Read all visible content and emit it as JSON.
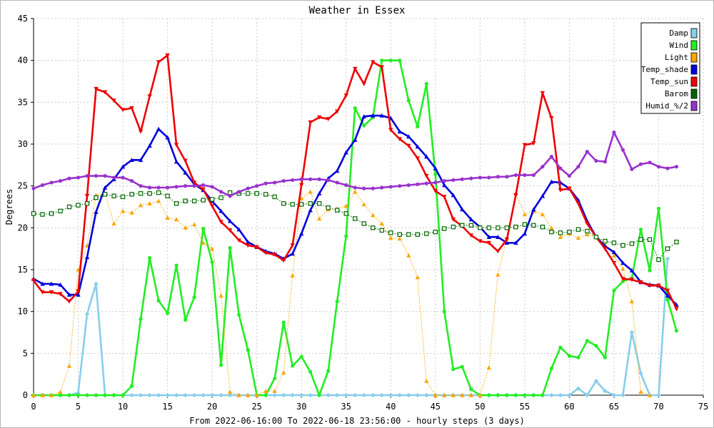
{
  "chart_data": {
    "type": "line",
    "title": "Weather in Essex",
    "xlabel": "From 2022-06-16:00 To 2022-06-18 23:56:00 - hourly steps (3 days)",
    "ylabel": "Degrees",
    "xlim": [
      0,
      75
    ],
    "ylim": [
      0,
      45
    ],
    "xticks": [
      0,
      5,
      10,
      15,
      20,
      25,
      30,
      35,
      40,
      45,
      50,
      55,
      60,
      65,
      70,
      75
    ],
    "yticks": [
      0,
      5,
      10,
      15,
      20,
      25,
      30,
      35,
      40,
      45
    ],
    "grid": true,
    "legend_position": "top-right",
    "series": [
      {
        "name": "Damp",
        "color": "#87ceeb",
        "marker": "diamond",
        "line": "solid",
        "values": [
          0,
          0,
          0,
          0,
          0,
          0.3,
          9.7,
          13.3,
          0,
          0,
          0,
          0,
          0,
          0,
          0,
          0,
          0,
          0,
          0,
          0,
          0,
          0,
          0,
          0,
          0,
          0,
          0,
          0,
          0,
          0,
          0,
          0,
          0,
          0,
          0,
          0,
          0,
          0,
          0,
          0,
          0,
          0,
          0,
          0,
          0,
          0,
          0,
          0,
          0,
          0,
          0,
          0,
          0,
          0,
          0,
          0,
          0,
          0,
          0,
          0,
          0,
          0.8,
          0,
          1.7,
          0.5,
          0,
          0,
          7.5,
          2.6,
          0,
          0,
          16.3
        ]
      },
      {
        "name": "Wind",
        "color": "#22ee22",
        "marker": "circle",
        "line": "solid",
        "values": [
          0,
          0,
          0,
          0,
          0,
          0,
          0,
          0,
          0,
          0,
          0,
          1.1,
          9.1,
          16.4,
          11.3,
          9.8,
          15.5,
          9,
          11.7,
          19.9,
          15.9,
          3.6,
          17.6,
          9.6,
          5.4,
          0,
          0,
          2,
          8.7,
          3.5,
          4.6,
          2.8,
          0,
          2.9,
          11.2,
          19,
          34.3,
          32.2,
          33.2,
          40,
          40,
          40,
          35.2,
          32.1,
          37.2,
          26.4,
          10,
          3.1,
          3.4,
          0.7,
          0,
          0,
          0,
          0,
          0,
          0,
          0,
          0,
          3.2,
          5.7,
          4.7,
          4.5,
          6.5,
          5.9,
          4.5,
          12.5,
          13.6,
          14,
          19.8,
          14.9,
          22.3,
          11.4,
          7.7
        ]
      },
      {
        "name": "Light",
        "color": "#ffa500",
        "marker": "triangle",
        "line": "dotted",
        "values": [
          0,
          0,
          0,
          0.4,
          3.5,
          15,
          17.9,
          23.9,
          24.1,
          20.5,
          22,
          21.8,
          22.7,
          22.9,
          23.2,
          21.2,
          21,
          20,
          20.4,
          18.2,
          17.5,
          11.9,
          0.4,
          0,
          0,
          0,
          0.5,
          0.5,
          2.7,
          14.3,
          23.5,
          24.3,
          21.1,
          22.2,
          22.3,
          22.6,
          24.3,
          22.8,
          21.5,
          20.5,
          18.8,
          18.7,
          16.7,
          14.1,
          1.7,
          0,
          0,
          0,
          0,
          0,
          0,
          3.3,
          14.4,
          18.7,
          24.1,
          21.6,
          22,
          21.6,
          20,
          18.9,
          19.3,
          18.8,
          19.2,
          18.9,
          18,
          16.7,
          15.1,
          11.2,
          0.4,
          0
        ]
      },
      {
        "name": "Temp_shade",
        "color": "#0000dd",
        "marker": "triangle",
        "line": "solid",
        "values": [
          13.9,
          13.3,
          13.3,
          13.2,
          12,
          12,
          16.5,
          21.9,
          24.8,
          25.8,
          27.3,
          28.1,
          28.1,
          29.8,
          31.8,
          30.8,
          27.9,
          26.6,
          25.2,
          24.5,
          23.2,
          22,
          20.8,
          19.8,
          18.3,
          17.7,
          17.2,
          16.9,
          16.3,
          16.9,
          19.3,
          22.1,
          24.1,
          25.9,
          26.8,
          29,
          30.5,
          33.3,
          33.4,
          33.4,
          33.1,
          31.5,
          30.9,
          29.7,
          28.5,
          27.1,
          25.1,
          23.9,
          22.2,
          21,
          20.1,
          18.9,
          18.9,
          18.2,
          18.2,
          19.3,
          22.2,
          23.8,
          25.5,
          25.4,
          24.7,
          23.3,
          20.8,
          18.9,
          17.8,
          17.1,
          15.8,
          14.9,
          13.5,
          13.2,
          13.1,
          11.9,
          10.8
        ]
      },
      {
        "name": "Temp_sun",
        "color": "#ee0000",
        "marker": "triangle-down",
        "line": "solid",
        "values": [
          13.7,
          12.3,
          12.3,
          12.1,
          11.2,
          12.4,
          23.8,
          36.6,
          36.2,
          35.2,
          34.1,
          34.3,
          31.5,
          35.7,
          39.8,
          40.6,
          29.9,
          28,
          25.4,
          24.6,
          22.6,
          20.7,
          19.7,
          18.5,
          17.9,
          17.7,
          17,
          16.8,
          16.1,
          17.9,
          25.1,
          32.6,
          33.2,
          33,
          33.9,
          35.8,
          39,
          37.2,
          39.8,
          39.2,
          31.7,
          30.6,
          29.8,
          28.3,
          26.2,
          24.4,
          23.7,
          21,
          20.2,
          19.1,
          18.4,
          18.2,
          17.2,
          18.6,
          23.9,
          29.9,
          30.1,
          36.1,
          33.1,
          24.5,
          24.7,
          22.9,
          20.5,
          18.9,
          17.5,
          15.8,
          13.9,
          13.8,
          13.5,
          13.1,
          13.1,
          12.5,
          10.3
        ]
      },
      {
        "name": "Barom",
        "color": "#006600",
        "marker": "square",
        "line": "dotted",
        "values": [
          21.7,
          21.6,
          21.7,
          22,
          22.5,
          22.7,
          22.9,
          23.6,
          24,
          23.8,
          23.7,
          24,
          24.1,
          24.1,
          24.2,
          23.8,
          22.9,
          23.2,
          23.2,
          23.3,
          23.4,
          23.6,
          24.2,
          24.1,
          24.1,
          24.1,
          24,
          23.7,
          22.9,
          22.8,
          22.8,
          22.9,
          22.9,
          22.4,
          22.1,
          21.7,
          21.1,
          20.5,
          20,
          19.7,
          19.4,
          19.2,
          19.2,
          19.2,
          19.3,
          19.5,
          19.9,
          20.1,
          20.3,
          20.3,
          20,
          20,
          20,
          20,
          20.1,
          20.4,
          20.3,
          20.1,
          19.5,
          19.4,
          19.5,
          19.8,
          19.6,
          18.9,
          18.4,
          18.2,
          17.9,
          18.1,
          18.6,
          18.6,
          16.2,
          17.5,
          18.3
        ]
      },
      {
        "name": "Humid_%/2",
        "color": "#9932cc",
        "marker": "circle",
        "line": "solid",
        "values": [
          24.7,
          25.1,
          25.4,
          25.6,
          25.9,
          26,
          26.2,
          26.2,
          26.2,
          26,
          26,
          25.6,
          25,
          24.8,
          24.8,
          24.8,
          24.9,
          25,
          25,
          25.1,
          24.9,
          24.3,
          23.8,
          24.3,
          24.7,
          25,
          25.3,
          25.4,
          25.6,
          25.7,
          25.8,
          25.8,
          25.8,
          25.7,
          25.4,
          25.1,
          24.8,
          24.7,
          24.7,
          24.8,
          24.9,
          25,
          25.1,
          25.2,
          25.3,
          25.4,
          25.6,
          25.7,
          25.8,
          25.9,
          26,
          26,
          26.1,
          26.1,
          26.3,
          26.3,
          26.3,
          27.3,
          28.5,
          27.1,
          26.2,
          27.3,
          29.1,
          28,
          27.9,
          31.4,
          29.3,
          27,
          27.6,
          27.8,
          27.3,
          27.1,
          27.3
        ]
      }
    ]
  }
}
